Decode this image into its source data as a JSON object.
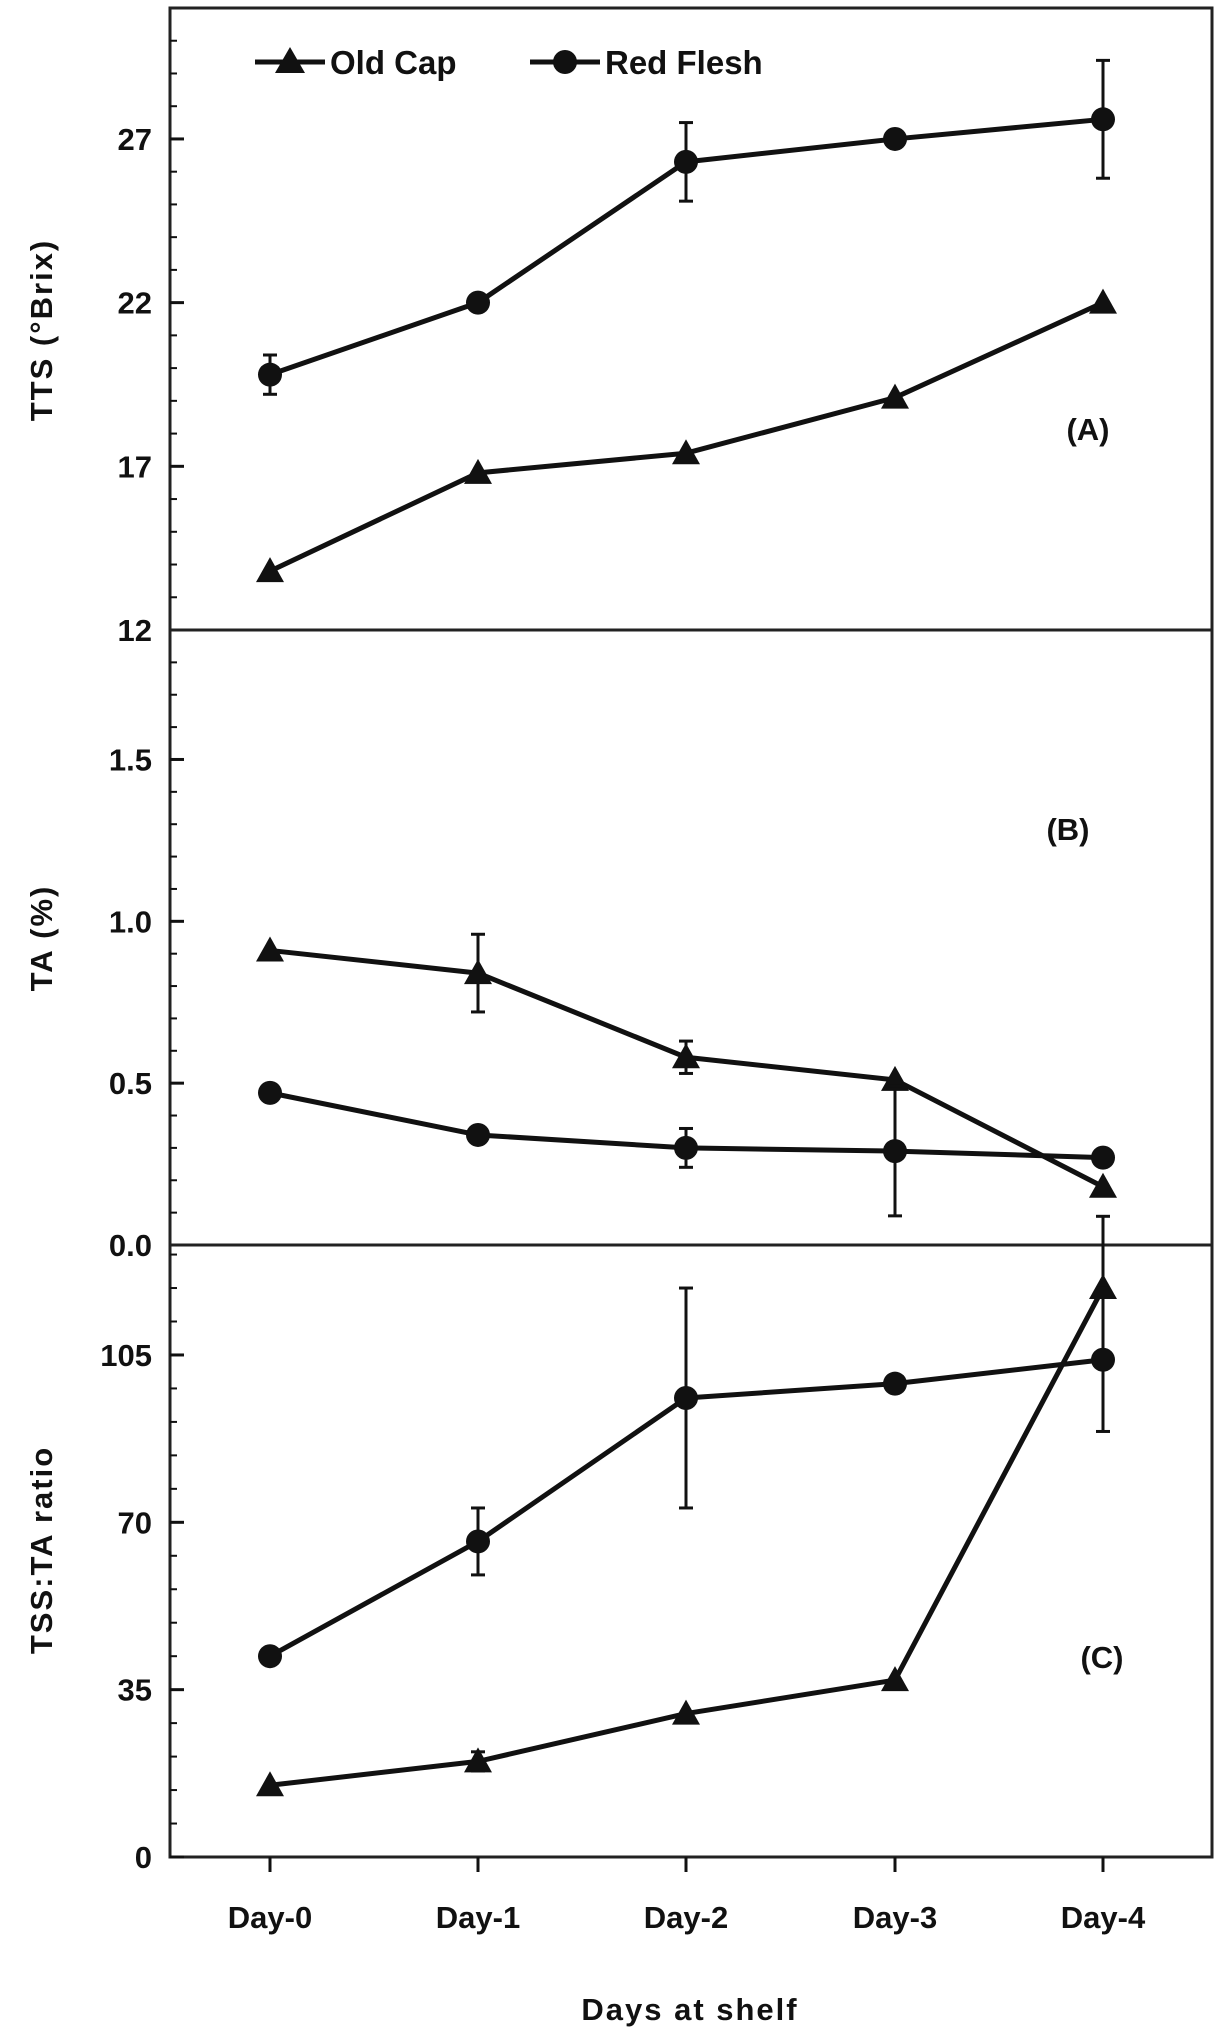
{
  "colors": {
    "line": "#111111",
    "frame": "#222222",
    "background": "#ffffff"
  },
  "x_axis": {
    "label": "Days at shelf",
    "categories": [
      "Day-0",
      "Day-1",
      "Day-2",
      "Day-3",
      "Day-4"
    ]
  },
  "legend": {
    "placement": "top-left",
    "entries": [
      {
        "name": "Old Cap",
        "marker": "triangle"
      },
      {
        "name": "Red Flesh",
        "marker": "circle"
      }
    ]
  },
  "chart_data": [
    {
      "type": "line",
      "panel": "(A)",
      "ylabel": "TTS (°Brix)",
      "ylim": [
        12,
        31
      ],
      "yticks": [
        "12",
        "17",
        "22",
        "27"
      ],
      "yticks_values": [
        12,
        17,
        22,
        27
      ],
      "categories": [
        "Day-0",
        "Day-1",
        "Day-2",
        "Day-3",
        "Day-4"
      ],
      "series": [
        {
          "name": "Old Cap",
          "marker": "triangle",
          "values": [
            13.8,
            16.8,
            17.4,
            19.1,
            22.0
          ],
          "errors": [
            0,
            0,
            0,
            0,
            0
          ]
        },
        {
          "name": "Red Flesh",
          "marker": "circle",
          "values": [
            19.8,
            22.0,
            26.3,
            27.0,
            27.6
          ],
          "errors": [
            0.6,
            0,
            1.2,
            0,
            1.8
          ]
        }
      ]
    },
    {
      "type": "line",
      "panel": "(B)",
      "ylabel": "TA (%)",
      "ylim": [
        0,
        1.9
      ],
      "yticks": [
        "0.0",
        "0.5",
        "1.0",
        "1.5"
      ],
      "yticks_values": [
        0,
        0.5,
        1.0,
        1.5
      ],
      "categories": [
        "Day-0",
        "Day-1",
        "Day-2",
        "Day-3",
        "Day-4"
      ],
      "series": [
        {
          "name": "Old Cap",
          "marker": "triangle",
          "values": [
            0.91,
            0.84,
            0.58,
            0.51,
            0.18
          ],
          "errors": [
            0,
            0.12,
            0.05,
            0,
            0
          ]
        },
        {
          "name": "Red Flesh",
          "marker": "circle",
          "values": [
            0.47,
            0.34,
            0.3,
            0.29,
            0.27
          ],
          "errors": [
            0,
            0,
            0.06,
            0.2,
            0
          ]
        }
      ]
    },
    {
      "type": "line",
      "panel": "(C)",
      "ylabel": "TSS:TA ratio",
      "ylim": [
        0,
        128
      ],
      "yticks": [
        "0",
        "35",
        "70",
        "105"
      ],
      "yticks_values": [
        0,
        35,
        70,
        105
      ],
      "categories": [
        "Day-0",
        "Day-1",
        "Day-2",
        "Day-3",
        "Day-4"
      ],
      "series": [
        {
          "name": "Old Cap",
          "marker": "triangle",
          "values": [
            15,
            20,
            30,
            37,
            119
          ],
          "errors": [
            0,
            2,
            0,
            0,
            15
          ]
        },
        {
          "name": "Red Flesh",
          "marker": "circle",
          "values": [
            42,
            66,
            96,
            99,
            104
          ],
          "errors": [
            0,
            7,
            23,
            0,
            15
          ]
        }
      ]
    }
  ]
}
